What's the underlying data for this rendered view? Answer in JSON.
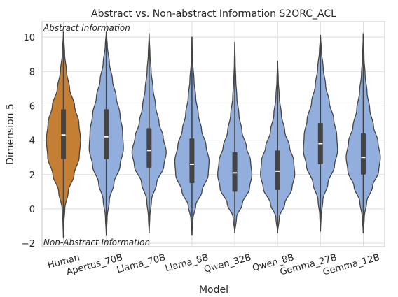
{
  "chart_data": {
    "type": "violin",
    "title": "Abstract vs. Non-abstract Information S2ORC_ACL",
    "xlabel": "Model",
    "ylabel": "Dimension 5",
    "ylim": [
      -2.2,
      10.9
    ],
    "y_ticks": [
      -2,
      0,
      2,
      4,
      6,
      8,
      10
    ],
    "grid": "on",
    "annotations": {
      "top": "Abstract Information",
      "bottom": "Non-Abstract Information"
    },
    "colors": {
      "human": "#c47f35",
      "model": "#92aedc",
      "line": "#444444",
      "grid": "#dddddd",
      "frame": "#cfcfcf"
    },
    "categories": [
      "Human",
      "Apertus_70B",
      "Llama_70B",
      "Llama_8B",
      "Qwen_32B",
      "Qwen_8B",
      "Gemma_27B",
      "Gemma_12B"
    ],
    "series": [
      {
        "name": "Human",
        "min": -1.7,
        "q1": 2.9,
        "median": 4.3,
        "q3": 5.8,
        "max": 10.3,
        "profile": [
          [
            -1.7,
            0.001
          ],
          [
            -0.8,
            0.03
          ],
          [
            0.0,
            0.08
          ],
          [
            1.0,
            0.28
          ],
          [
            2.0,
            0.62
          ],
          [
            3.0,
            0.92
          ],
          [
            4.0,
            1.0
          ],
          [
            5.0,
            0.9
          ],
          [
            6.0,
            0.65
          ],
          [
            7.0,
            0.36
          ],
          [
            8.0,
            0.18
          ],
          [
            9.0,
            0.07
          ],
          [
            10.3,
            0.001
          ]
        ]
      },
      {
        "name": "Apertus_70B",
        "min": -1.5,
        "q1": 2.9,
        "median": 4.2,
        "q3": 5.8,
        "max": 10.3,
        "profile": [
          [
            -1.5,
            0.001
          ],
          [
            -0.5,
            0.05
          ],
          [
            0.5,
            0.18
          ],
          [
            1.5,
            0.45
          ],
          [
            2.5,
            0.8
          ],
          [
            3.5,
            1.0
          ],
          [
            4.5,
            0.95
          ],
          [
            5.5,
            0.8
          ],
          [
            6.5,
            0.58
          ],
          [
            7.5,
            0.36
          ],
          [
            8.5,
            0.18
          ],
          [
            9.5,
            0.06
          ],
          [
            10.3,
            0.001
          ]
        ]
      },
      {
        "name": "Llama_70B",
        "min": -1.4,
        "q1": 2.4,
        "median": 3.4,
        "q3": 4.7,
        "max": 10.2,
        "profile": [
          [
            -1.4,
            0.001
          ],
          [
            -0.5,
            0.04
          ],
          [
            0.5,
            0.14
          ],
          [
            1.5,
            0.44
          ],
          [
            2.5,
            0.86
          ],
          [
            3.3,
            1.0
          ],
          [
            4.2,
            0.82
          ],
          [
            5.0,
            0.58
          ],
          [
            6.0,
            0.38
          ],
          [
            7.0,
            0.23
          ],
          [
            8.0,
            0.12
          ],
          [
            9.0,
            0.05
          ],
          [
            10.2,
            0.001
          ]
        ]
      },
      {
        "name": "Llama_8B",
        "min": -1.5,
        "q1": 1.5,
        "median": 2.6,
        "q3": 4.1,
        "max": 10.0,
        "profile": [
          [
            -1.5,
            0.001
          ],
          [
            -0.6,
            0.06
          ],
          [
            0.2,
            0.22
          ],
          [
            1.0,
            0.58
          ],
          [
            2.0,
            0.95
          ],
          [
            2.8,
            1.0
          ],
          [
            3.7,
            0.82
          ],
          [
            4.6,
            0.56
          ],
          [
            5.5,
            0.37
          ],
          [
            6.5,
            0.22
          ],
          [
            7.5,
            0.12
          ],
          [
            8.5,
            0.05
          ],
          [
            10.0,
            0.001
          ]
        ]
      },
      {
        "name": "Qwen_32B",
        "min": -1.4,
        "q1": 1.0,
        "median": 2.1,
        "q3": 3.3,
        "max": 9.7,
        "profile": [
          [
            -1.4,
            0.001
          ],
          [
            -0.5,
            0.1
          ],
          [
            0.3,
            0.44
          ],
          [
            1.2,
            0.86
          ],
          [
            2.0,
            1.0
          ],
          [
            2.8,
            0.92
          ],
          [
            3.6,
            0.68
          ],
          [
            4.5,
            0.42
          ],
          [
            5.5,
            0.24
          ],
          [
            6.5,
            0.12
          ],
          [
            7.5,
            0.06
          ],
          [
            8.5,
            0.025
          ],
          [
            9.7,
            0.001
          ]
        ]
      },
      {
        "name": "Qwen_8B",
        "min": -1.4,
        "q1": 1.1,
        "median": 2.2,
        "q3": 3.4,
        "max": 8.6,
        "profile": [
          [
            -1.4,
            0.001
          ],
          [
            -0.5,
            0.1
          ],
          [
            0.3,
            0.42
          ],
          [
            1.2,
            0.84
          ],
          [
            2.0,
            1.0
          ],
          [
            2.8,
            0.94
          ],
          [
            3.6,
            0.7
          ],
          [
            4.5,
            0.42
          ],
          [
            5.5,
            0.22
          ],
          [
            6.5,
            0.1
          ],
          [
            7.5,
            0.04
          ],
          [
            8.6,
            0.001
          ]
        ]
      },
      {
        "name": "Gemma_27B",
        "min": -1.3,
        "q1": 2.6,
        "median": 3.8,
        "q3": 5.0,
        "max": 10.1,
        "profile": [
          [
            -1.3,
            0.001
          ],
          [
            -0.4,
            0.04
          ],
          [
            0.5,
            0.14
          ],
          [
            1.5,
            0.44
          ],
          [
            2.5,
            0.82
          ],
          [
            3.4,
            1.0
          ],
          [
            4.3,
            0.95
          ],
          [
            5.2,
            0.78
          ],
          [
            6.2,
            0.52
          ],
          [
            7.2,
            0.3
          ],
          [
            8.2,
            0.16
          ],
          [
            9.2,
            0.06
          ],
          [
            10.1,
            0.001
          ]
        ]
      },
      {
        "name": "Gemma_12B",
        "min": -1.4,
        "q1": 2.0,
        "median": 3.0,
        "q3": 4.4,
        "max": 10.2,
        "profile": [
          [
            -1.4,
            0.001
          ],
          [
            -0.5,
            0.06
          ],
          [
            0.4,
            0.2
          ],
          [
            1.3,
            0.54
          ],
          [
            2.2,
            0.9
          ],
          [
            3.0,
            1.0
          ],
          [
            3.9,
            0.86
          ],
          [
            4.8,
            0.6
          ],
          [
            5.8,
            0.38
          ],
          [
            6.8,
            0.22
          ],
          [
            7.8,
            0.11
          ],
          [
            8.8,
            0.045
          ],
          [
            10.2,
            0.001
          ]
        ]
      }
    ]
  }
}
